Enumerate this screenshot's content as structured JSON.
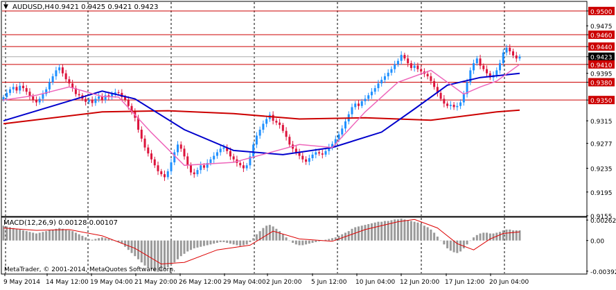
{
  "window": {
    "header_arrow": "▼",
    "symbol": "AUDUSD,H4",
    "ohlc": "0.9421 0.9425 0.9421 0.9423"
  },
  "price_panel": {
    "y_ticks": [
      "0.9500",
      "0.9475",
      "0.9460",
      "0.9440",
      "0.9423",
      "0.9410",
      "0.9395",
      "0.9380",
      "0.9350",
      "0.9315",
      "0.9277",
      "0.9235",
      "0.9195",
      "0.9155"
    ],
    "highlighted_levels": [
      "0.9500",
      "0.9460",
      "0.9440",
      "0.9410",
      "0.9380",
      "0.9350"
    ],
    "current_price": "0.9423"
  },
  "macd_panel": {
    "title": "MACD(12,26,9) 0.00128 0.00107",
    "y_ticks": [
      "0.00262",
      "0.00",
      "-0.00392"
    ]
  },
  "x_axis": {
    "labels": [
      "9 May 2014",
      "14 May 12:00",
      "19 May 04:00",
      "21 May 20:00",
      "26 May 12:00",
      "29 May 04:00",
      "2 Jun 20:00",
      "5 Jun 12:00",
      "10 Jun 04:00",
      "12 Jun 20:00",
      "17 Jun 12:00",
      "20 Jun 04:00"
    ]
  },
  "footer": {
    "copyright": "MetaTrader, © 2001-2014, MetaQuotes Software Corp."
  },
  "colors": {
    "bull": "#1e90ff",
    "bear": "#dc143c",
    "ma_slow": "#cc0000",
    "ma_mid": "#0000cc",
    "ma_fast": "#ee66bb",
    "macd_hist": "#9a9a9a",
    "macd_signal": "#dd0000",
    "level_line": "#cc0000",
    "label_bg": "#cc0000",
    "current_bg": "#000000"
  },
  "chart_data": {
    "type": "candlestick",
    "symbol": "AUDUSD",
    "timeframe": "H4",
    "ylim": [
      0.9155,
      0.9515
    ],
    "horizontal_levels": [
      0.95,
      0.946,
      0.944,
      0.941,
      0.938,
      0.935
    ],
    "current_price": 0.9423,
    "close_series": [
      [
        0,
        0.9355
      ],
      [
        1,
        0.9362
      ],
      [
        2,
        0.9368
      ],
      [
        3,
        0.9372
      ],
      [
        4,
        0.9366
      ],
      [
        5,
        0.9374
      ],
      [
        6,
        0.937
      ],
      [
        7,
        0.9364
      ],
      [
        8,
        0.9356
      ],
      [
        9,
        0.935
      ],
      [
        10,
        0.9346
      ],
      [
        11,
        0.9352
      ],
      [
        12,
        0.936
      ],
      [
        13,
        0.9368
      ],
      [
        14,
        0.938
      ],
      [
        15,
        0.939
      ],
      [
        16,
        0.94
      ],
      [
        17,
        0.9405
      ],
      [
        18,
        0.9395
      ],
      [
        19,
        0.9385
      ],
      [
        20,
        0.9378
      ],
      [
        21,
        0.937
      ],
      [
        22,
        0.936
      ],
      [
        23,
        0.9358
      ],
      [
        24,
        0.9352
      ],
      [
        25,
        0.9347
      ],
      [
        26,
        0.935
      ],
      [
        27,
        0.9345
      ],
      [
        28,
        0.9352
      ],
      [
        29,
        0.9356
      ],
      [
        30,
        0.935
      ],
      [
        31,
        0.9358
      ],
      [
        32,
        0.9355
      ],
      [
        33,
        0.936
      ],
      [
        34,
        0.9363
      ],
      [
        35,
        0.9362
      ],
      [
        36,
        0.9355
      ],
      [
        37,
        0.935
      ],
      [
        38,
        0.934
      ],
      [
        39,
        0.933
      ],
      [
        40,
        0.932
      ],
      [
        41,
        0.93
      ],
      [
        42,
        0.9285
      ],
      [
        43,
        0.927
      ],
      [
        44,
        0.926
      ],
      [
        45,
        0.925
      ],
      [
        46,
        0.924
      ],
      [
        47,
        0.923
      ],
      [
        48,
        0.9225
      ],
      [
        49,
        0.922
      ],
      [
        50,
        0.923
      ],
      [
        51,
        0.9245
      ],
      [
        52,
        0.9262
      ],
      [
        53,
        0.9275
      ],
      [
        54,
        0.9268
      ],
      [
        55,
        0.9255
      ],
      [
        56,
        0.924
      ],
      [
        57,
        0.9228
      ],
      [
        58,
        0.9225
      ],
      [
        59,
        0.9232
      ],
      [
        60,
        0.924
      ],
      [
        61,
        0.9236
      ],
      [
        62,
        0.9244
      ],
      [
        63,
        0.925
      ],
      [
        64,
        0.9256
      ],
      [
        65,
        0.9262
      ],
      [
        66,
        0.9268
      ],
      [
        67,
        0.927
      ],
      [
        68,
        0.9264
      ],
      [
        69,
        0.9255
      ],
      [
        70,
        0.925
      ],
      [
        71,
        0.9244
      ],
      [
        72,
        0.924
      ],
      [
        73,
        0.9235
      ],
      [
        74,
        0.924
      ],
      [
        75,
        0.9255
      ],
      [
        76,
        0.9275
      ],
      [
        77,
        0.929
      ],
      [
        78,
        0.93
      ],
      [
        79,
        0.931
      ],
      [
        80,
        0.9318
      ],
      [
        81,
        0.9325
      ],
      [
        82,
        0.9315
      ],
      [
        83,
        0.9312
      ],
      [
        84,
        0.9308
      ],
      [
        85,
        0.9298
      ],
      [
        86,
        0.9288
      ],
      [
        87,
        0.9275
      ],
      [
        88,
        0.9268
      ],
      [
        89,
        0.9262
      ],
      [
        90,
        0.9256
      ],
      [
        91,
        0.925
      ],
      [
        92,
        0.9246
      ],
      [
        93,
        0.9252
      ],
      [
        94,
        0.9258
      ],
      [
        95,
        0.9262
      ],
      [
        96,
        0.926
      ],
      [
        97,
        0.9258
      ],
      [
        98,
        0.9264
      ],
      [
        99,
        0.927
      ],
      [
        100,
        0.9276
      ],
      [
        101,
        0.9284
      ],
      [
        102,
        0.9292
      ],
      [
        103,
        0.9302
      ],
      [
        104,
        0.9314
      ],
      [
        105,
        0.9326
      ],
      [
        106,
        0.9338
      ],
      [
        107,
        0.9344
      ],
      [
        108,
        0.934
      ],
      [
        109,
        0.9348
      ],
      [
        110,
        0.9352
      ],
      [
        111,
        0.9358
      ],
      [
        112,
        0.9364
      ],
      [
        113,
        0.937
      ],
      [
        114,
        0.9378
      ],
      [
        115,
        0.9384
      ],
      [
        116,
        0.939
      ],
      [
        117,
        0.9396
      ],
      [
        118,
        0.9402
      ],
      [
        119,
        0.941
      ],
      [
        120,
        0.9416
      ],
      [
        121,
        0.9426
      ],
      [
        122,
        0.942
      ],
      [
        123,
        0.9412
      ],
      [
        124,
        0.9404
      ],
      [
        125,
        0.9408
      ],
      [
        126,
        0.9402
      ],
      [
        127,
        0.9398
      ],
      [
        128,
        0.9394
      ],
      [
        129,
        0.939
      ],
      [
        130,
        0.9382
      ],
      [
        131,
        0.9372
      ],
      [
        132,
        0.9362
      ],
      [
        133,
        0.9352
      ],
      [
        134,
        0.9344
      ],
      [
        135,
        0.934
      ],
      [
        136,
        0.9342
      ],
      [
        137,
        0.9338
      ],
      [
        138,
        0.934
      ],
      [
        139,
        0.9346
      ],
      [
        140,
        0.936
      ],
      [
        141,
        0.938
      ],
      [
        142,
        0.94
      ],
      [
        143,
        0.9412
      ],
      [
        144,
        0.942
      ],
      [
        145,
        0.9408
      ],
      [
        146,
        0.9402
      ],
      [
        147,
        0.9395
      ],
      [
        148,
        0.9388
      ],
      [
        149,
        0.9392
      ],
      [
        150,
        0.94
      ],
      [
        151,
        0.9412
      ],
      [
        152,
        0.943
      ],
      [
        153,
        0.9438
      ],
      [
        154,
        0.9432
      ],
      [
        155,
        0.9425
      ],
      [
        156,
        0.942
      ],
      [
        157,
        0.9423
      ]
    ],
    "ma_slow": [
      [
        0,
        0.931
      ],
      [
        30,
        0.933
      ],
      [
        50,
        0.9332
      ],
      [
        70,
        0.9327
      ],
      [
        90,
        0.9318
      ],
      [
        110,
        0.932
      ],
      [
        130,
        0.9316
      ],
      [
        150,
        0.933
      ],
      [
        157,
        0.9333
      ]
    ],
    "ma_mid": [
      [
        0,
        0.9315
      ],
      [
        15,
        0.934
      ],
      [
        30,
        0.9365
      ],
      [
        40,
        0.9352
      ],
      [
        55,
        0.93
      ],
      [
        70,
        0.9265
      ],
      [
        85,
        0.9258
      ],
      [
        100,
        0.927
      ],
      [
        115,
        0.9296
      ],
      [
        125,
        0.9335
      ],
      [
        135,
        0.9375
      ],
      [
        145,
        0.9388
      ],
      [
        157,
        0.9395
      ]
    ],
    "ma_fast": [
      [
        0,
        0.935
      ],
      [
        10,
        0.9358
      ],
      [
        20,
        0.9372
      ],
      [
        30,
        0.9356
      ],
      [
        35,
        0.9355
      ],
      [
        45,
        0.9295
      ],
      [
        55,
        0.924
      ],
      [
        70,
        0.9245
      ],
      [
        80,
        0.926
      ],
      [
        90,
        0.9275
      ],
      [
        100,
        0.927
      ],
      [
        110,
        0.933
      ],
      [
        120,
        0.938
      ],
      [
        130,
        0.94
      ],
      [
        140,
        0.936
      ],
      [
        145,
        0.9372
      ],
      [
        150,
        0.9382
      ],
      [
        157,
        0.941
      ]
    ],
    "macd": {
      "title": "MACD(12,26,9) 0.00128 0.00107",
      "ylim": [
        -0.0042,
        0.0029
      ],
      "histogram": [
        0.0019,
        0.0018,
        0.0017,
        0.0016,
        0.0015,
        0.0014,
        0.0013,
        0.0012,
        0.0011,
        0.001,
        0.0009,
        0.001,
        0.0011,
        0.0012,
        0.0013,
        0.0014,
        0.0015,
        0.0016,
        0.0015,
        0.0014,
        0.0013,
        0.0012,
        0.001,
        0.0008,
        0.0006,
        0.0004,
        0.0002,
        0.0001,
        0.0002,
        0.0003,
        0.0004,
        0.0003,
        0.0002,
        0.0001,
        0.0,
        -0.0002,
        -0.0004,
        -0.0008,
        -0.0012,
        -0.0016,
        -0.002,
        -0.0024,
        -0.0028,
        -0.0032,
        -0.0035,
        -0.0037,
        -0.0039,
        -0.004,
        -0.0039,
        -0.0037,
        -0.0034,
        -0.0031,
        -0.0028,
        -0.0024,
        -0.002,
        -0.0017,
        -0.0014,
        -0.0012,
        -0.001,
        -0.0009,
        -0.0008,
        -0.0007,
        -0.0006,
        -0.0005,
        -0.0004,
        -0.0003,
        -0.0002,
        -0.0002,
        -0.0003,
        -0.0004,
        -0.0005,
        -0.0006,
        -0.0007,
        -0.0006,
        -0.0005,
        -0.0002,
        0.0003,
        0.0008,
        0.0012,
        0.0016,
        0.0019,
        0.002,
        0.0018,
        0.0015,
        0.0012,
        0.0008,
        0.0004,
        0.0,
        -0.0003,
        -0.0005,
        -0.0006,
        -0.0006,
        -0.0005,
        -0.0004,
        -0.0003,
        -0.0002,
        -0.0001,
        0.0,
        0.0001,
        0.0002,
        0.0003,
        0.0004,
        0.0006,
        0.0008,
        0.001,
        0.0012,
        0.0015,
        0.0017,
        0.0018,
        0.0019,
        0.002,
        0.0021,
        0.0022,
        0.0023,
        0.0024,
        0.0024,
        0.0025,
        0.0025,
        0.0026,
        0.0027,
        0.0027,
        0.0028,
        0.0027,
        0.0026,
        0.0025,
        0.0024,
        0.0023,
        0.0021,
        0.0019,
        0.0017,
        0.0014,
        0.001,
        0.0005,
        0.0,
        -0.0005,
        -0.001,
        -0.0013,
        -0.0015,
        -0.0016,
        -0.0014,
        -0.001,
        -0.0005,
        0.0,
        0.0004,
        0.0007,
        0.0009,
        0.001,
        0.001,
        0.0009,
        0.0009,
        0.001,
        0.0011,
        0.0013,
        0.0014,
        0.0014,
        0.0013,
        0.0013,
        0.0013
      ],
      "signal": [
        [
          0,
          0.0016
        ],
        [
          10,
          0.0013
        ],
        [
          20,
          0.0014
        ],
        [
          30,
          0.0006
        ],
        [
          40,
          -0.001
        ],
        [
          48,
          -0.003
        ],
        [
          55,
          -0.0028
        ],
        [
          65,
          -0.0012
        ],
        [
          75,
          -0.0006
        ],
        [
          82,
          0.0012
        ],
        [
          90,
          0.0002
        ],
        [
          100,
          -0.0001
        ],
        [
          110,
          0.0014
        ],
        [
          120,
          0.0024
        ],
        [
          125,
          0.0027
        ],
        [
          132,
          0.0016
        ],
        [
          138,
          -0.0004
        ],
        [
          143,
          -0.0012
        ],
        [
          148,
          0.0002
        ],
        [
          152,
          0.0009
        ],
        [
          157,
          0.0011
        ]
      ]
    }
  }
}
